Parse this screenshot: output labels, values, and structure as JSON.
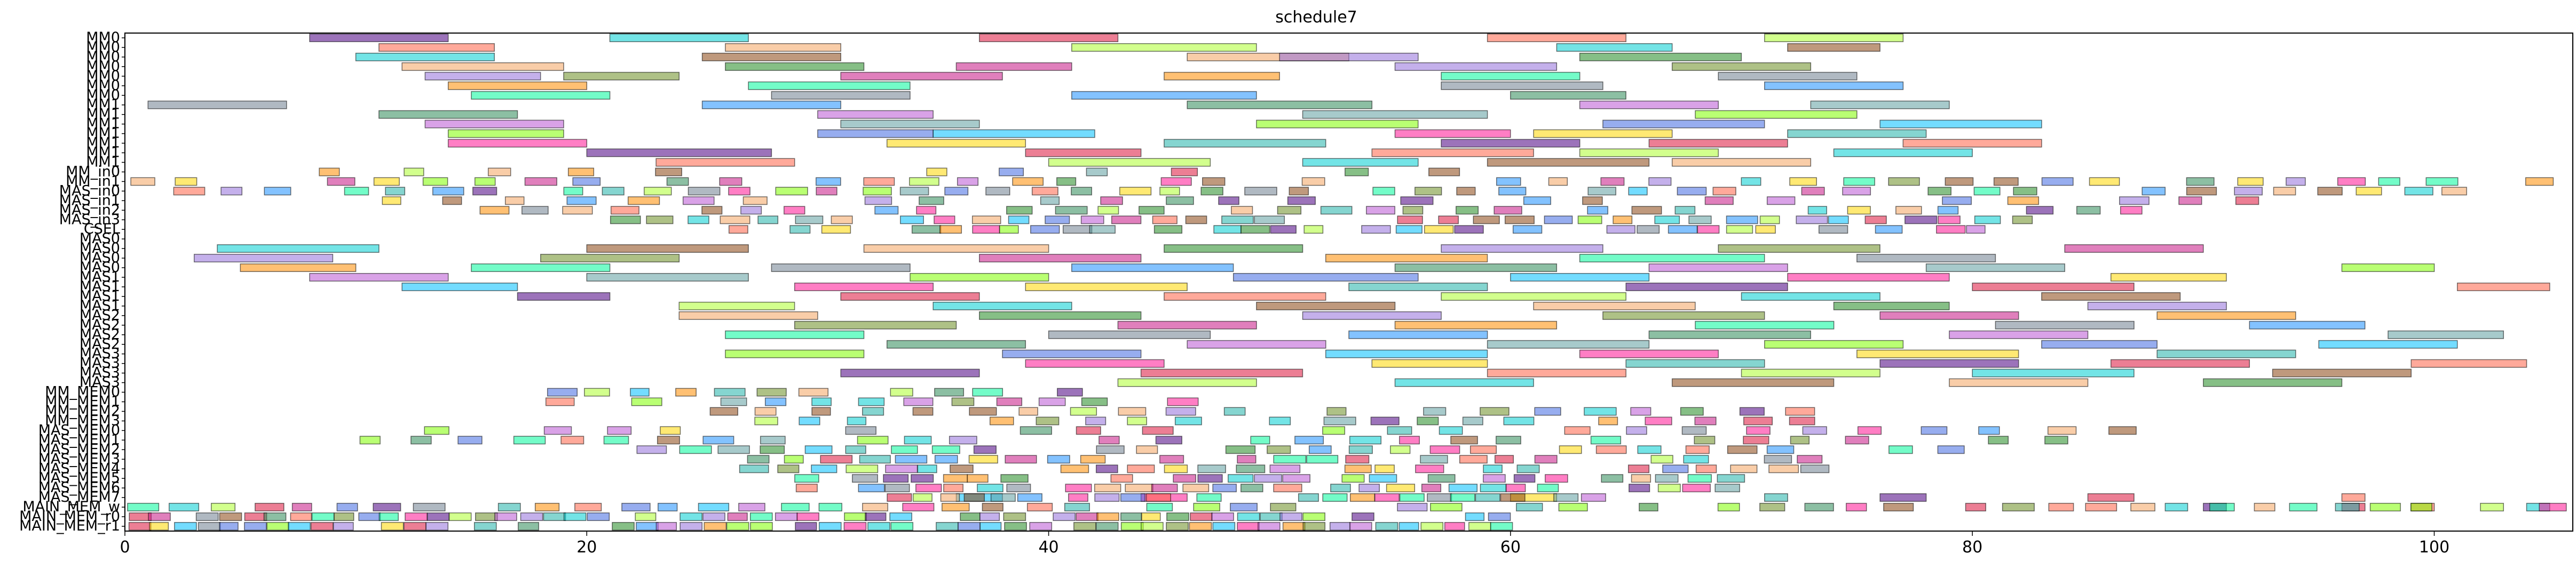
{
  "chart_data": {
    "type": "gantt",
    "title": "schedule7",
    "xlim": [
      0,
      106
    ],
    "xticks": [
      0,
      20,
      40,
      60,
      80,
      100
    ],
    "grid": false,
    "legend": "none",
    "rows": [
      "MM0",
      "MM0",
      "MM0",
      "MM0",
      "MM0",
      "MM0",
      "MM0",
      "MM1",
      "MM1",
      "MM1",
      "MM1",
      "MM1",
      "MM1",
      "MM1",
      "MM_in0",
      "MM_in1",
      "MAS_in0",
      "MAS_in1",
      "MAS_in2",
      "MAS_in3",
      "CSEL",
      "MAS0",
      "MAS0",
      "MAS0",
      "MAS0",
      "MAS1",
      "MAS1",
      "MAS1",
      "MAS1",
      "MAS2",
      "MAS2",
      "MAS2",
      "MAS2",
      "MAS3",
      "MAS3",
      "MAS3",
      "MAS3",
      "MM_MEM0",
      "MM_MEM1",
      "MM_MEM2",
      "MM_MEM3",
      "MAS_MEM0",
      "MAS_MEM1",
      "MAS_MEM2",
      "MAS_MEM3",
      "MAS_MEM4",
      "MAS_MEM5",
      "MAS_MEM6",
      "MAS_MEM7",
      "MAIN_MEM_w",
      "MAIN_MEM_r0",
      "MAIN_MEM_r1"
    ],
    "palette": [
      "#4b0082",
      "#228b22",
      "#1e90ff",
      "#ff1493",
      "#00ced1",
      "#ff8c00",
      "#7fff00",
      "#dc143c",
      "#9370db",
      "#2e8b57",
      "#ffd700",
      "#8b4513",
      "#00fa9a",
      "#4169e1",
      "#ff6347",
      "#6b8e23",
      "#ba55d3",
      "#20b2aa",
      "#f4a460",
      "#708090",
      "#00bfff",
      "#adff2f",
      "#c71585",
      "#5f9ea0"
    ],
    "bars": [
      [
        0,
        8,
        6
      ],
      [
        0,
        37,
        6
      ],
      [
        0,
        59,
        6
      ],
      [
        0,
        71,
        6
      ],
      [
        0,
        21,
        6
      ],
      [
        1,
        11,
        5
      ],
      [
        1,
        41,
        8
      ],
      [
        1,
        62,
        5
      ],
      [
        1,
        72,
        4
      ],
      [
        1,
        26,
        5
      ],
      [
        2,
        10,
        6
      ],
      [
        2,
        25,
        6
      ],
      [
        2,
        46,
        7
      ],
      [
        2,
        63,
        7
      ],
      [
        2,
        50,
        6
      ],
      [
        3,
        12,
        7
      ],
      [
        3,
        26,
        6
      ],
      [
        3,
        55,
        7
      ],
      [
        3,
        67,
        6
      ],
      [
        3,
        36,
        5
      ],
      [
        4,
        13,
        5
      ],
      [
        4,
        19,
        5
      ],
      [
        4,
        31,
        7
      ],
      [
        4,
        45,
        5
      ],
      [
        4,
        57,
        6
      ],
      [
        4,
        69,
        6
      ],
      [
        5,
        14,
        6
      ],
      [
        5,
        27,
        7
      ],
      [
        5,
        57,
        7
      ],
      [
        5,
        71,
        6
      ],
      [
        6,
        15,
        6
      ],
      [
        6,
        28,
        6
      ],
      [
        6,
        41,
        8
      ],
      [
        6,
        60,
        5
      ],
      [
        7,
        1,
        6
      ],
      [
        7,
        25,
        6
      ],
      [
        7,
        46,
        8
      ],
      [
        7,
        63,
        6
      ],
      [
        7,
        73,
        6
      ],
      [
        8,
        11,
        6
      ],
      [
        8,
        30,
        5
      ],
      [
        8,
        51,
        8
      ],
      [
        8,
        68,
        7
      ],
      [
        9,
        13,
        6
      ],
      [
        9,
        31,
        6
      ],
      [
        9,
        49,
        7
      ],
      [
        9,
        64,
        7
      ],
      [
        9,
        76,
        7
      ],
      [
        10,
        14,
        5
      ],
      [
        10,
        30,
        5
      ],
      [
        10,
        35,
        7
      ],
      [
        10,
        55,
        5
      ],
      [
        10,
        61,
        6
      ],
      [
        10,
        72,
        6
      ],
      [
        11,
        14,
        6
      ],
      [
        11,
        33,
        6
      ],
      [
        11,
        45,
        7
      ],
      [
        11,
        57,
        6
      ],
      [
        11,
        66,
        6
      ],
      [
        11,
        77,
        6
      ],
      [
        12,
        20,
        8
      ],
      [
        12,
        39,
        5
      ],
      [
        12,
        54,
        7
      ],
      [
        12,
        63,
        6
      ],
      [
        12,
        74,
        6
      ],
      [
        13,
        23,
        6
      ],
      [
        13,
        40,
        7
      ],
      [
        13,
        51,
        5
      ],
      [
        13,
        59,
        7
      ],
      [
        13,
        67,
        6
      ],
      [
        22,
        4,
        7
      ],
      [
        22,
        20,
        7
      ],
      [
        22,
        32,
        8
      ],
      [
        22,
        45,
        6
      ],
      [
        22,
        57,
        7
      ],
      [
        22,
        69,
        7
      ],
      [
        22,
        84,
        6
      ],
      [
        23,
        3,
        6
      ],
      [
        23,
        18,
        6
      ],
      [
        23,
        37,
        7
      ],
      [
        23,
        52,
        7
      ],
      [
        23,
        63,
        8
      ],
      [
        23,
        75,
        6
      ],
      [
        24,
        5,
        5
      ],
      [
        24,
        15,
        6
      ],
      [
        24,
        28,
        6
      ],
      [
        24,
        41,
        7
      ],
      [
        24,
        55,
        7
      ],
      [
        24,
        66,
        6
      ],
      [
        24,
        78,
        6
      ],
      [
        24,
        96,
        4
      ],
      [
        25,
        8,
        6
      ],
      [
        25,
        20,
        7
      ],
      [
        25,
        34,
        6
      ],
      [
        25,
        48,
        8
      ],
      [
        25,
        60,
        6
      ],
      [
        25,
        72,
        7
      ],
      [
        25,
        86,
        5
      ],
      [
        26,
        12,
        5
      ],
      [
        26,
        29,
        6
      ],
      [
        26,
        39,
        7
      ],
      [
        26,
        53,
        6
      ],
      [
        26,
        65,
        7
      ],
      [
        26,
        80,
        7
      ],
      [
        26,
        101,
        4
      ],
      [
        27,
        17,
        4
      ],
      [
        27,
        31,
        6
      ],
      [
        27,
        45,
        7
      ],
      [
        27,
        57,
        8
      ],
      [
        27,
        70,
        6
      ],
      [
        27,
        83,
        6
      ],
      [
        28,
        24,
        5
      ],
      [
        28,
        35,
        6
      ],
      [
        28,
        49,
        6
      ],
      [
        28,
        61,
        7
      ],
      [
        28,
        74,
        5
      ],
      [
        28,
        85,
        6
      ],
      [
        29,
        24,
        6
      ],
      [
        29,
        37,
        7
      ],
      [
        29,
        51,
        6
      ],
      [
        29,
        64,
        7
      ],
      [
        29,
        76,
        6
      ],
      [
        29,
        88,
        6
      ],
      [
        30,
        29,
        7
      ],
      [
        30,
        43,
        6
      ],
      [
        30,
        55,
        7
      ],
      [
        30,
        68,
        6
      ],
      [
        30,
        81,
        6
      ],
      [
        30,
        92,
        5
      ],
      [
        31,
        26,
        6
      ],
      [
        31,
        40,
        7
      ],
      [
        31,
        53,
        6
      ],
      [
        31,
        66,
        7
      ],
      [
        31,
        79,
        6
      ],
      [
        31,
        98,
        5
      ],
      [
        32,
        33,
        6
      ],
      [
        32,
        46,
        6
      ],
      [
        32,
        59,
        7
      ],
      [
        32,
        71,
        6
      ],
      [
        32,
        83,
        5
      ],
      [
        32,
        95,
        6
      ],
      [
        33,
        26,
        6
      ],
      [
        33,
        38,
        6
      ],
      [
        33,
        52,
        7
      ],
      [
        33,
        63,
        6
      ],
      [
        33,
        75,
        7
      ],
      [
        33,
        88,
        6
      ],
      [
        34,
        39,
        6
      ],
      [
        34,
        54,
        5
      ],
      [
        34,
        65,
        6
      ],
      [
        34,
        76,
        6
      ],
      [
        34,
        86,
        6
      ],
      [
        34,
        99,
        5
      ],
      [
        35,
        31,
        6
      ],
      [
        35,
        44,
        7
      ],
      [
        35,
        59,
        6
      ],
      [
        35,
        70,
        6
      ],
      [
        35,
        80,
        7
      ],
      [
        35,
        93,
        6
      ],
      [
        36,
        43,
        6
      ],
      [
        36,
        55,
        6
      ],
      [
        36,
        67,
        7
      ],
      [
        36,
        79,
        6
      ],
      [
        36,
        90,
        6
      ],
      [
        48,
        36,
        2
      ],
      [
        48,
        44,
        2
      ],
      [
        48,
        60,
        2
      ],
      [
        48,
        71,
        1
      ],
      [
        48,
        76,
        2
      ],
      [
        48,
        85,
        2
      ],
      [
        48,
        96,
        1
      ],
      [
        49,
        90,
        1
      ],
      [
        49,
        96,
        1
      ],
      [
        49,
        99,
        1
      ],
      [
        49,
        102,
        1
      ],
      [
        49,
        104,
        1
      ]
    ],
    "dense": [
      [
        14,
        8,
        60,
        14
      ],
      [
        15,
        0,
        106,
        50
      ],
      [
        16,
        2,
        104,
        55
      ],
      [
        17,
        11,
        94,
        32
      ],
      [
        18,
        15,
        88,
        38
      ],
      [
        19,
        21,
        83,
        40
      ],
      [
        20,
        26,
        81,
        42
      ],
      [
        37,
        18,
        44,
        14
      ],
      [
        38,
        18,
        49,
        16
      ],
      [
        39,
        25,
        74,
        22
      ],
      [
        40,
        25,
        74,
        24
      ],
      [
        41,
        10,
        88,
        30
      ],
      [
        42,
        10,
        87,
        36
      ],
      [
        43,
        22,
        80,
        32
      ],
      [
        44,
        25,
        74,
        30
      ],
      [
        45,
        25,
        74,
        32
      ],
      [
        46,
        29,
        70,
        33
      ],
      [
        47,
        29,
        70,
        32
      ],
      [
        48,
        33,
        64,
        28
      ],
      [
        49,
        0,
        106,
        60
      ],
      [
        50,
        0,
        60,
        60
      ],
      [
        51,
        0,
        60,
        60
      ]
    ]
  }
}
